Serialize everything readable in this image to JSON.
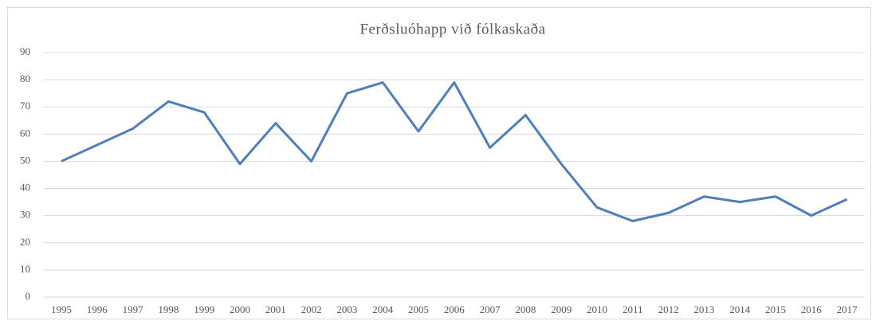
{
  "chart_data": {
    "type": "line",
    "title": "Ferðsluóhapp við fólkaskaða",
    "categories": [
      "1995",
      "1996",
      "1997",
      "1998",
      "1999",
      "2000",
      "2001",
      "2002",
      "2003",
      "2004",
      "2005",
      "2006",
      "2007",
      "2008",
      "2009",
      "2010",
      "2011",
      "2012",
      "2013",
      "2014",
      "2015",
      "2016",
      "2017"
    ],
    "series": [
      {
        "name": "Ferðsluóhapp við fólkaskaða",
        "color": "#4f7fba",
        "values": [
          50,
          56,
          62,
          72,
          68,
          49,
          64,
          50,
          75,
          79,
          61,
          79,
          55,
          67,
          49,
          33,
          28,
          31,
          37,
          35,
          37,
          30,
          36
        ]
      }
    ],
    "ylim": [
      0,
      90
    ],
    "yticks": [
      0,
      10,
      20,
      30,
      40,
      50,
      60,
      70,
      80,
      90
    ],
    "grid": true
  }
}
